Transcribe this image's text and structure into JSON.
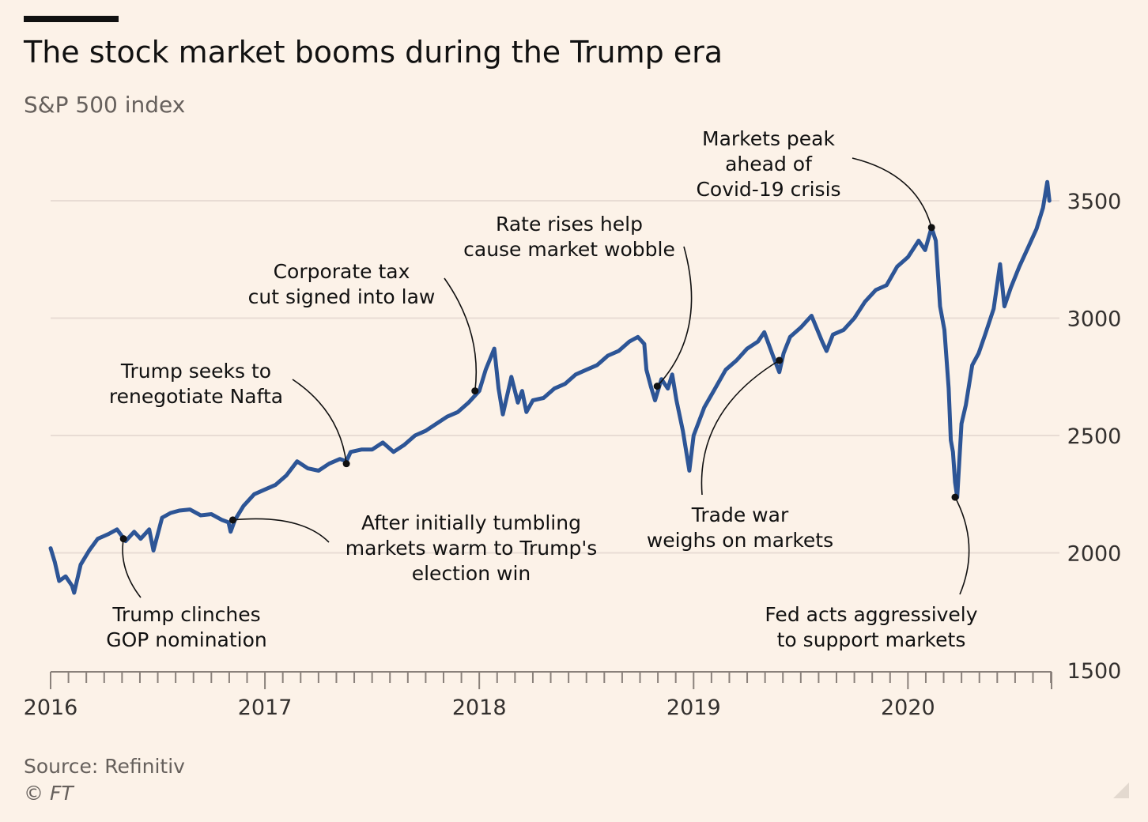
{
  "header": {
    "title": "The stock market booms during the Trump era",
    "subtitle": "S&P 500 index"
  },
  "footer": {
    "source": "Source: Refinitiv",
    "copyright": "© FT"
  },
  "colors": {
    "background": "#fcf2e8",
    "line": "#2d5596",
    "grid": "#e8dcd4",
    "text": "#33302e",
    "muted": "#66605c"
  },
  "chart_data": {
    "type": "line",
    "title": "The stock market booms during the Trump era",
    "subtitle": "S&P 500 index",
    "xlabel": "",
    "ylabel": "",
    "y_axis_position": "right",
    "xlim": [
      2016.0,
      2020.67
    ],
    "ylim": [
      1500,
      3500
    ],
    "y_ticks": [
      1500,
      2000,
      2500,
      3000,
      3500
    ],
    "y_tick_labels": [
      "1500",
      "2000",
      "2500",
      "3000",
      "3500"
    ],
    "x_ticks": [
      2016,
      2017,
      2018,
      2019,
      2020
    ],
    "x_tick_labels": [
      "2016",
      "2017",
      "2018",
      "2019",
      "2020"
    ],
    "grid": true,
    "legend": "none",
    "series": [
      {
        "name": "S&P 500",
        "points": [
          [
            2016.0,
            2020
          ],
          [
            2016.02,
            1960
          ],
          [
            2016.04,
            1880
          ],
          [
            2016.07,
            1900
          ],
          [
            2016.1,
            1860
          ],
          [
            2016.11,
            1830
          ],
          [
            2016.14,
            1950
          ],
          [
            2016.18,
            2010
          ],
          [
            2016.22,
            2060
          ],
          [
            2016.27,
            2080
          ],
          [
            2016.31,
            2100
          ],
          [
            2016.35,
            2050
          ],
          [
            2016.39,
            2090
          ],
          [
            2016.42,
            2060
          ],
          [
            2016.46,
            2100
          ],
          [
            2016.48,
            2010
          ],
          [
            2016.52,
            2150
          ],
          [
            2016.56,
            2170
          ],
          [
            2016.6,
            2180
          ],
          [
            2016.65,
            2185
          ],
          [
            2016.7,
            2160
          ],
          [
            2016.75,
            2165
          ],
          [
            2016.8,
            2140
          ],
          [
            2016.83,
            2130
          ],
          [
            2016.84,
            2090
          ],
          [
            2016.86,
            2140
          ],
          [
            2016.9,
            2200
          ],
          [
            2016.95,
            2250
          ],
          [
            2017.0,
            2270
          ],
          [
            2017.05,
            2290
          ],
          [
            2017.1,
            2330
          ],
          [
            2017.15,
            2390
          ],
          [
            2017.2,
            2360
          ],
          [
            2017.25,
            2350
          ],
          [
            2017.3,
            2380
          ],
          [
            2017.35,
            2400
          ],
          [
            2017.38,
            2390
          ],
          [
            2017.4,
            2430
          ],
          [
            2017.45,
            2440
          ],
          [
            2017.5,
            2440
          ],
          [
            2017.55,
            2470
          ],
          [
            2017.6,
            2430
          ],
          [
            2017.65,
            2460
          ],
          [
            2017.7,
            2500
          ],
          [
            2017.75,
            2520
          ],
          [
            2017.8,
            2550
          ],
          [
            2017.85,
            2580
          ],
          [
            2017.9,
            2600
          ],
          [
            2017.95,
            2640
          ],
          [
            2018.0,
            2690
          ],
          [
            2018.03,
            2780
          ],
          [
            2018.07,
            2870
          ],
          [
            2018.09,
            2700
          ],
          [
            2018.11,
            2590
          ],
          [
            2018.15,
            2750
          ],
          [
            2018.18,
            2640
          ],
          [
            2018.2,
            2690
          ],
          [
            2018.22,
            2600
          ],
          [
            2018.25,
            2650
          ],
          [
            2018.3,
            2660
          ],
          [
            2018.35,
            2700
          ],
          [
            2018.4,
            2720
          ],
          [
            2018.45,
            2760
          ],
          [
            2018.5,
            2780
          ],
          [
            2018.55,
            2800
          ],
          [
            2018.6,
            2840
          ],
          [
            2018.65,
            2860
          ],
          [
            2018.7,
            2900
          ],
          [
            2018.74,
            2920
          ],
          [
            2018.77,
            2890
          ],
          [
            2018.78,
            2780
          ],
          [
            2018.8,
            2710
          ],
          [
            2018.82,
            2650
          ],
          [
            2018.85,
            2740
          ],
          [
            2018.88,
            2700
          ],
          [
            2018.9,
            2760
          ],
          [
            2018.92,
            2650
          ],
          [
            2018.95,
            2520
          ],
          [
            2018.98,
            2350
          ],
          [
            2019.0,
            2500
          ],
          [
            2019.05,
            2620
          ],
          [
            2019.1,
            2700
          ],
          [
            2019.15,
            2780
          ],
          [
            2019.2,
            2820
          ],
          [
            2019.25,
            2870
          ],
          [
            2019.3,
            2900
          ],
          [
            2019.33,
            2940
          ],
          [
            2019.37,
            2840
          ],
          [
            2019.4,
            2770
          ],
          [
            2019.42,
            2850
          ],
          [
            2019.45,
            2920
          ],
          [
            2019.5,
            2960
          ],
          [
            2019.55,
            3010
          ],
          [
            2019.6,
            2900
          ],
          [
            2019.62,
            2860
          ],
          [
            2019.65,
            2930
          ],
          [
            2019.7,
            2950
          ],
          [
            2019.75,
            3000
          ],
          [
            2019.8,
            3070
          ],
          [
            2019.85,
            3120
          ],
          [
            2019.9,
            3140
          ],
          [
            2019.95,
            3220
          ],
          [
            2020.0,
            3260
          ],
          [
            2020.05,
            3330
          ],
          [
            2020.08,
            3290
          ],
          [
            2020.11,
            3386
          ],
          [
            2020.13,
            3330
          ],
          [
            2020.15,
            3050
          ],
          [
            2020.17,
            2950
          ],
          [
            2020.19,
            2700
          ],
          [
            2020.2,
            2480
          ],
          [
            2020.21,
            2430
          ],
          [
            2020.22,
            2300
          ],
          [
            2020.23,
            2237
          ],
          [
            2020.25,
            2550
          ],
          [
            2020.27,
            2630
          ],
          [
            2020.3,
            2800
          ],
          [
            2020.33,
            2850
          ],
          [
            2020.36,
            2930
          ],
          [
            2020.4,
            3040
          ],
          [
            2020.43,
            3230
          ],
          [
            2020.45,
            3050
          ],
          [
            2020.48,
            3130
          ],
          [
            2020.52,
            3220
          ],
          [
            2020.56,
            3300
          ],
          [
            2020.6,
            3380
          ],
          [
            2020.63,
            3470
          ],
          [
            2020.65,
            3580
          ],
          [
            2020.66,
            3500
          ]
        ]
      }
    ],
    "annotations": [
      {
        "id": "nomination",
        "lines": [
          "Trump clinches",
          "GOP nomination"
        ],
        "point": [
          2016.34,
          2060
        ]
      },
      {
        "id": "election",
        "lines": [
          "After initially tumbling",
          "markets warm to Trump's",
          "election win"
        ],
        "point": [
          2016.85,
          2140
        ]
      },
      {
        "id": "nafta",
        "lines": [
          "Trump seeks to",
          "renegotiate Nafta"
        ],
        "point": [
          2017.38,
          2380
        ]
      },
      {
        "id": "taxcut",
        "lines": [
          "Corporate tax",
          "cut signed into law"
        ],
        "point": [
          2017.98,
          2690
        ]
      },
      {
        "id": "rates",
        "lines": [
          "Rate rises help",
          "cause market wobble"
        ],
        "point": [
          2018.83,
          2710
        ]
      },
      {
        "id": "tradewar",
        "lines": [
          "Trade war",
          "weighs on markets"
        ],
        "point": [
          2019.4,
          2820
        ]
      },
      {
        "id": "peak",
        "lines": [
          "Markets peak",
          "ahead of",
          "Covid-19 crisis"
        ],
        "point": [
          2020.11,
          3386
        ]
      },
      {
        "id": "fed",
        "lines": [
          "Fed acts aggressively",
          "to support markets"
        ],
        "point": [
          2020.22,
          2237
        ]
      }
    ]
  }
}
